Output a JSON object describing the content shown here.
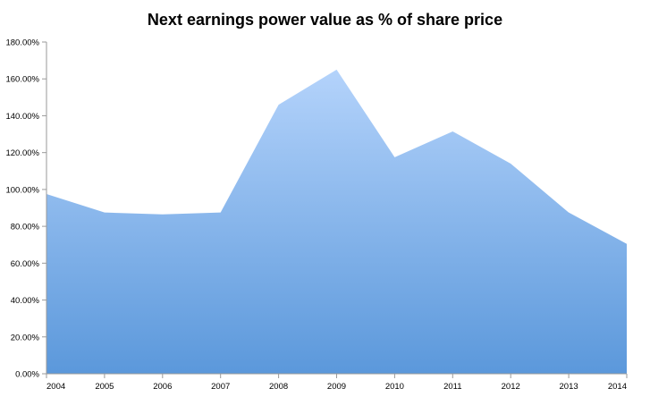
{
  "chart_data": {
    "type": "area",
    "title": "Next earnings power value as % of share price",
    "xlabel": "",
    "ylabel": "",
    "x": [
      "2004",
      "2005",
      "2006",
      "2007",
      "2008",
      "2009",
      "2010",
      "2011",
      "2012",
      "2013",
      "2014"
    ],
    "series": [
      {
        "values": [
          97.5,
          87.5,
          86.5,
          87.5,
          146.0,
          165.0,
          117.5,
          131.5,
          114.0,
          87.5,
          70.5
        ]
      }
    ],
    "ylim": [
      0,
      180
    ],
    "yticks": [
      0,
      20,
      40,
      60,
      80,
      100,
      120,
      140,
      160,
      180
    ],
    "ytick_labels": [
      "0.00%",
      "20.00%",
      "40.00%",
      "60.00%",
      "80.00%",
      "100.00%",
      "120.00%",
      "140.00%",
      "160.00%",
      "180.00%"
    ],
    "grid": false,
    "legend": "none",
    "colors": {
      "fill_top": "#b4d3fb",
      "fill_bottom": "#5b98db",
      "axis": "#9a9a9a"
    }
  }
}
